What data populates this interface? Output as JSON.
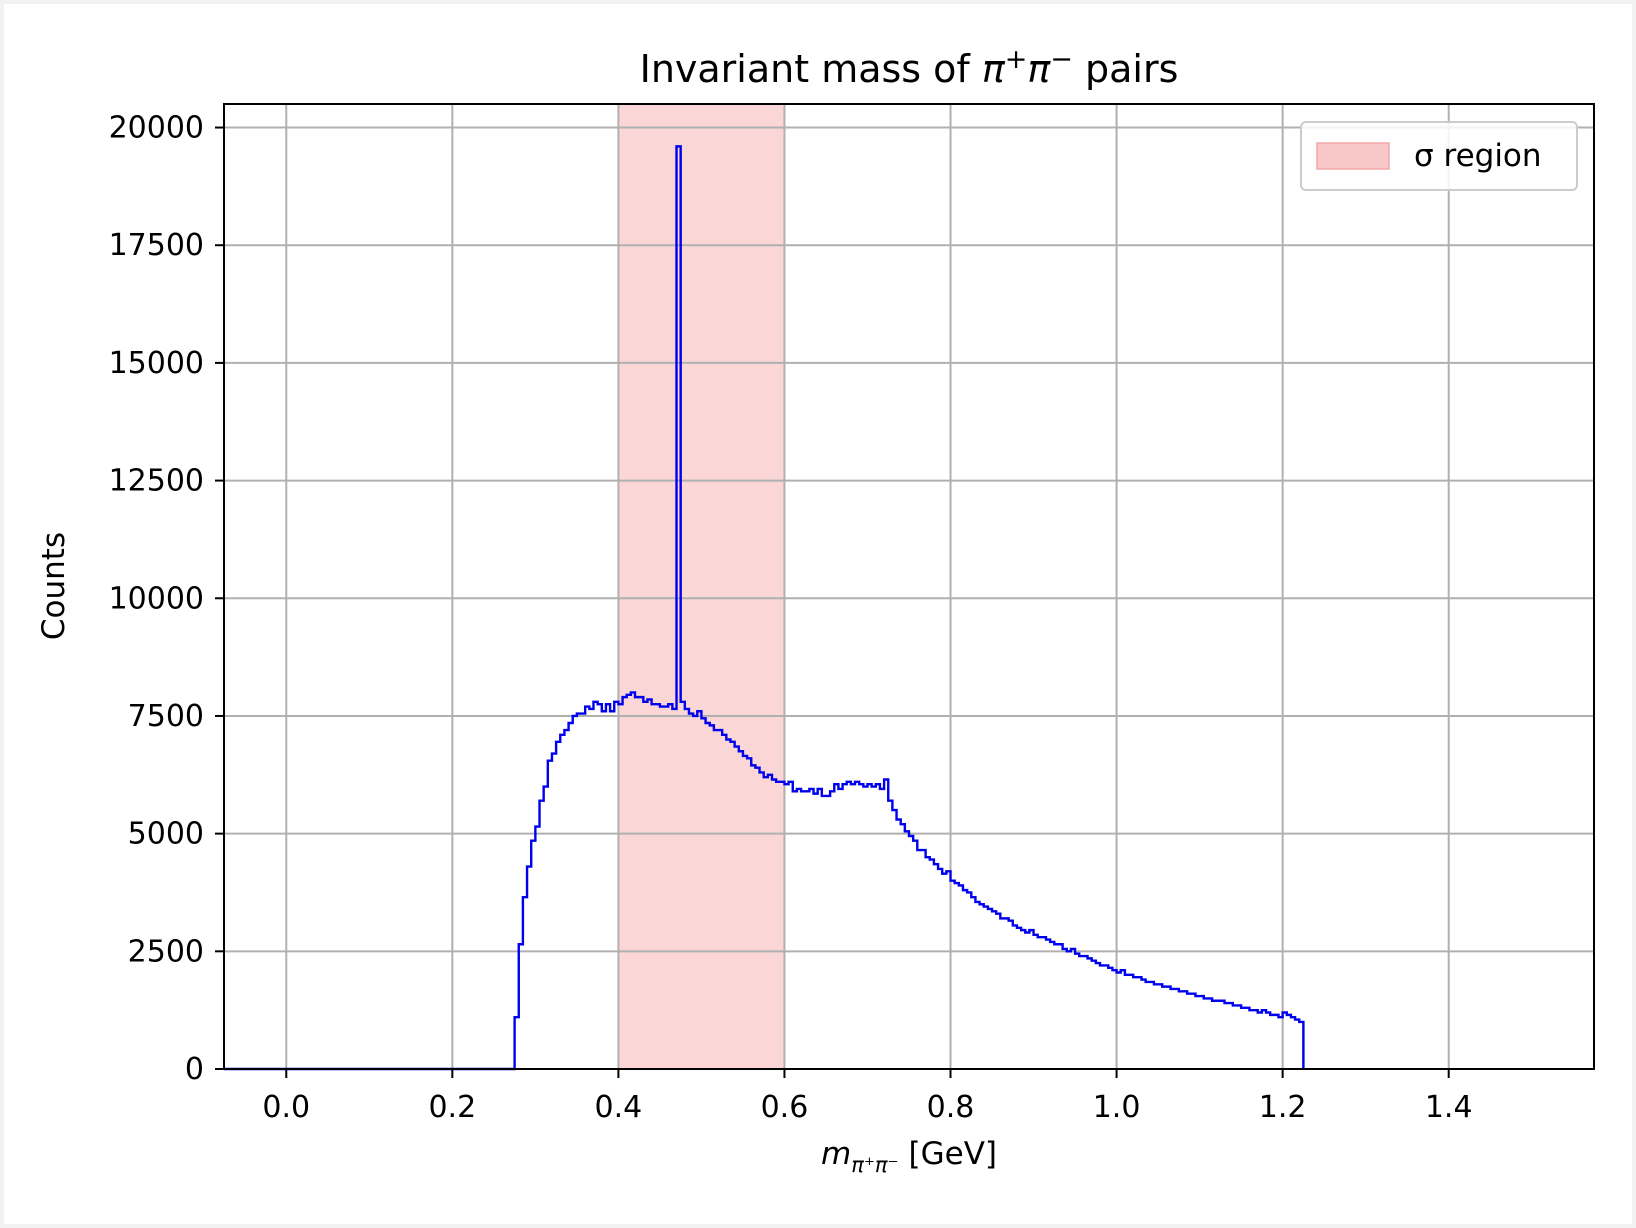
{
  "chart_data": {
    "type": "histogram",
    "title": "Invariant mass of π⁺π⁻ pairs",
    "xlabel": "m_π⁺π⁻ [GeV]",
    "ylabel": "Counts",
    "xlim": [
      -0.075,
      1.575
    ],
    "ylim": [
      0,
      20500
    ],
    "xticks": [
      "0.0",
      "0.2",
      "0.4",
      "0.6",
      "0.8",
      "1.0",
      "1.2",
      "1.4"
    ],
    "yticks": [
      "0",
      "2500",
      "5000",
      "7500",
      "10000",
      "12500",
      "15000",
      "17500",
      "20000"
    ],
    "grid": true,
    "legend": {
      "placement": "top-right",
      "entries": [
        {
          "label": "σ region",
          "color": "#f8c8c8"
        }
      ]
    },
    "shaded_region": {
      "label": "σ region",
      "x_range": [
        0.4,
        0.6
      ],
      "color": "#f8c8c8"
    },
    "series": [
      {
        "color": "#0000ee",
        "bin_width": 0.005,
        "bins": [
          [
            0.275,
            1100
          ],
          [
            0.28,
            2650
          ],
          [
            0.285,
            3650
          ],
          [
            0.29,
            4300
          ],
          [
            0.295,
            4850
          ],
          [
            0.3,
            5150
          ],
          [
            0.305,
            5700
          ],
          [
            0.31,
            6000
          ],
          [
            0.315,
            6550
          ],
          [
            0.32,
            6700
          ],
          [
            0.325,
            6950
          ],
          [
            0.33,
            7100
          ],
          [
            0.335,
            7200
          ],
          [
            0.34,
            7350
          ],
          [
            0.345,
            7500
          ],
          [
            0.35,
            7550
          ],
          [
            0.355,
            7550
          ],
          [
            0.36,
            7700
          ],
          [
            0.365,
            7650
          ],
          [
            0.37,
            7800
          ],
          [
            0.375,
            7750
          ],
          [
            0.38,
            7600
          ],
          [
            0.385,
            7750
          ],
          [
            0.39,
            7600
          ],
          [
            0.395,
            7800
          ],
          [
            0.4,
            7750
          ],
          [
            0.405,
            7900
          ],
          [
            0.41,
            7950
          ],
          [
            0.415,
            8000
          ],
          [
            0.42,
            7900
          ],
          [
            0.425,
            7900
          ],
          [
            0.43,
            7800
          ],
          [
            0.435,
            7850
          ],
          [
            0.44,
            7750
          ],
          [
            0.445,
            7750
          ],
          [
            0.45,
            7700
          ],
          [
            0.455,
            7700
          ],
          [
            0.46,
            7750
          ],
          [
            0.465,
            7650
          ],
          [
            0.47,
            19600
          ],
          [
            0.475,
            7800
          ],
          [
            0.48,
            7650
          ],
          [
            0.485,
            7550
          ],
          [
            0.49,
            7500
          ],
          [
            0.495,
            7600
          ],
          [
            0.5,
            7450
          ],
          [
            0.505,
            7350
          ],
          [
            0.51,
            7300
          ],
          [
            0.515,
            7200
          ],
          [
            0.52,
            7200
          ],
          [
            0.525,
            7100
          ],
          [
            0.53,
            7000
          ],
          [
            0.535,
            6950
          ],
          [
            0.54,
            6850
          ],
          [
            0.545,
            6750
          ],
          [
            0.55,
            6650
          ],
          [
            0.555,
            6600
          ],
          [
            0.56,
            6450
          ],
          [
            0.565,
            6400
          ],
          [
            0.57,
            6300
          ],
          [
            0.575,
            6200
          ],
          [
            0.58,
            6250
          ],
          [
            0.585,
            6150
          ],
          [
            0.59,
            6100
          ],
          [
            0.595,
            6100
          ],
          [
            0.6,
            6050
          ],
          [
            0.605,
            6100
          ],
          [
            0.61,
            5900
          ],
          [
            0.615,
            5950
          ],
          [
            0.62,
            5900
          ],
          [
            0.625,
            5900
          ],
          [
            0.63,
            5950
          ],
          [
            0.635,
            5850
          ],
          [
            0.64,
            5950
          ],
          [
            0.645,
            5800
          ],
          [
            0.65,
            5800
          ],
          [
            0.655,
            5900
          ],
          [
            0.66,
            6050
          ],
          [
            0.665,
            5950
          ],
          [
            0.67,
            6050
          ],
          [
            0.675,
            6100
          ],
          [
            0.68,
            6050
          ],
          [
            0.685,
            6100
          ],
          [
            0.69,
            6050
          ],
          [
            0.695,
            6000
          ],
          [
            0.7,
            6050
          ],
          [
            0.705,
            6000
          ],
          [
            0.71,
            6050
          ],
          [
            0.715,
            5950
          ],
          [
            0.72,
            6150
          ],
          [
            0.725,
            5700
          ],
          [
            0.73,
            5500
          ],
          [
            0.735,
            5300
          ],
          [
            0.74,
            5200
          ],
          [
            0.745,
            5050
          ],
          [
            0.75,
            4950
          ],
          [
            0.755,
            4850
          ],
          [
            0.76,
            4650
          ],
          [
            0.765,
            4650
          ],
          [
            0.77,
            4500
          ],
          [
            0.775,
            4450
          ],
          [
            0.78,
            4350
          ],
          [
            0.785,
            4250
          ],
          [
            0.79,
            4150
          ],
          [
            0.795,
            4200
          ],
          [
            0.8,
            4000
          ],
          [
            0.805,
            3950
          ],
          [
            0.81,
            3900
          ],
          [
            0.815,
            3800
          ],
          [
            0.82,
            3750
          ],
          [
            0.825,
            3650
          ],
          [
            0.83,
            3550
          ],
          [
            0.835,
            3500
          ],
          [
            0.84,
            3450
          ],
          [
            0.845,
            3400
          ],
          [
            0.85,
            3350
          ],
          [
            0.855,
            3300
          ],
          [
            0.86,
            3200
          ],
          [
            0.865,
            3200
          ],
          [
            0.87,
            3150
          ],
          [
            0.875,
            3050
          ],
          [
            0.88,
            3000
          ],
          [
            0.885,
            2950
          ],
          [
            0.89,
            2900
          ],
          [
            0.895,
            2950
          ],
          [
            0.9,
            2850
          ],
          [
            0.905,
            2800
          ],
          [
            0.91,
            2800
          ],
          [
            0.915,
            2750
          ],
          [
            0.92,
            2700
          ],
          [
            0.925,
            2650
          ],
          [
            0.93,
            2650
          ],
          [
            0.935,
            2550
          ],
          [
            0.94,
            2500
          ],
          [
            0.945,
            2550
          ],
          [
            0.95,
            2450
          ],
          [
            0.955,
            2400
          ],
          [
            0.96,
            2400
          ],
          [
            0.965,
            2350
          ],
          [
            0.97,
            2300
          ],
          [
            0.975,
            2250
          ],
          [
            0.98,
            2200
          ],
          [
            0.985,
            2200
          ],
          [
            0.99,
            2150
          ],
          [
            0.995,
            2100
          ],
          [
            1.0,
            2050
          ],
          [
            1.005,
            2100
          ],
          [
            1.01,
            2000
          ],
          [
            1.015,
            2000
          ],
          [
            1.02,
            1950
          ],
          [
            1.025,
            1950
          ],
          [
            1.03,
            1900
          ],
          [
            1.035,
            1850
          ],
          [
            1.04,
            1850
          ],
          [
            1.045,
            1800
          ],
          [
            1.05,
            1800
          ],
          [
            1.055,
            1750
          ],
          [
            1.06,
            1750
          ],
          [
            1.065,
            1700
          ],
          [
            1.07,
            1700
          ],
          [
            1.075,
            1650
          ],
          [
            1.08,
            1650
          ],
          [
            1.085,
            1600
          ],
          [
            1.09,
            1600
          ],
          [
            1.095,
            1550
          ],
          [
            1.1,
            1550
          ],
          [
            1.105,
            1500
          ],
          [
            1.11,
            1500
          ],
          [
            1.115,
            1450
          ],
          [
            1.12,
            1450
          ],
          [
            1.125,
            1450
          ],
          [
            1.13,
            1400
          ],
          [
            1.135,
            1400
          ],
          [
            1.14,
            1350
          ],
          [
            1.145,
            1350
          ],
          [
            1.15,
            1300
          ],
          [
            1.155,
            1300
          ],
          [
            1.16,
            1250
          ],
          [
            1.165,
            1250
          ],
          [
            1.17,
            1200
          ],
          [
            1.175,
            1250
          ],
          [
            1.18,
            1200
          ],
          [
            1.185,
            1150
          ],
          [
            1.19,
            1150
          ],
          [
            1.195,
            1100
          ],
          [
            1.2,
            1200
          ],
          [
            1.205,
            1150
          ],
          [
            1.21,
            1100
          ],
          [
            1.215,
            1050
          ],
          [
            1.22,
            1000
          ]
        ]
      }
    ]
  }
}
